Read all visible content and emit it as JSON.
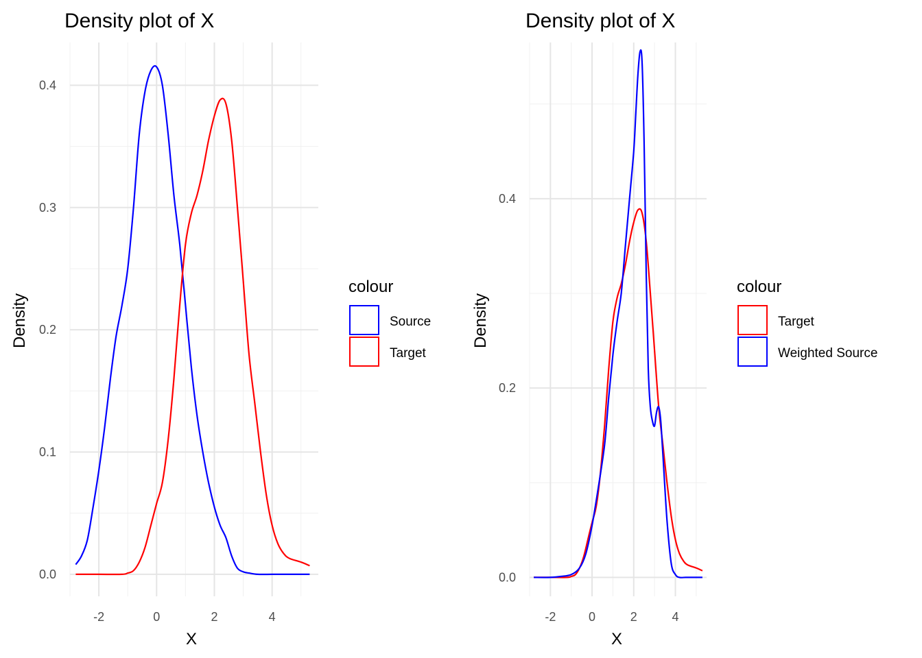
{
  "chart_data": [
    {
      "type": "line",
      "title": "Density plot of X",
      "xlabel": "X",
      "ylabel": "Density",
      "xlim": [
        -3.0,
        5.6
      ],
      "ylim": [
        -0.018,
        0.435
      ],
      "x_ticks": [
        -2,
        0,
        2,
        4
      ],
      "y_ticks": [
        0.0,
        0.1,
        0.2,
        0.3,
        0.4
      ],
      "y_tick_labels": [
        "0.0",
        "0.1",
        "0.2",
        "0.3",
        "0.4"
      ],
      "grid": true,
      "legend": {
        "title": "colour",
        "position": "right",
        "entries": [
          {
            "label": "Source",
            "color": "#0000ff"
          },
          {
            "label": "Target",
            "color": "#ff0000"
          }
        ]
      },
      "series": [
        {
          "name": "Source",
          "color": "#0000ff",
          "x": [
            -2.8,
            -2.6,
            -2.4,
            -2.2,
            -2.0,
            -1.8,
            -1.6,
            -1.4,
            -1.2,
            -1.0,
            -0.8,
            -0.6,
            -0.4,
            -0.2,
            0.0,
            0.2,
            0.4,
            0.6,
            0.8,
            1.0,
            1.2,
            1.4,
            1.6,
            1.8,
            2.0,
            2.2,
            2.4,
            2.6,
            2.8,
            3.0,
            3.2,
            3.5,
            4.0,
            4.5,
            5.0,
            5.3
          ],
          "y": [
            0.008,
            0.015,
            0.028,
            0.055,
            0.085,
            0.12,
            0.16,
            0.195,
            0.22,
            0.25,
            0.3,
            0.36,
            0.395,
            0.412,
            0.415,
            0.4,
            0.36,
            0.31,
            0.27,
            0.22,
            0.17,
            0.13,
            0.1,
            0.075,
            0.055,
            0.04,
            0.03,
            0.015,
            0.005,
            0.002,
            0.001,
            0.0,
            0.0,
            0.0,
            0.0,
            0.0
          ]
        },
        {
          "name": "Target",
          "color": "#ff0000",
          "x": [
            -2.8,
            -2.0,
            -1.2,
            -1.0,
            -0.8,
            -0.6,
            -0.4,
            -0.2,
            0.0,
            0.2,
            0.4,
            0.6,
            0.8,
            1.0,
            1.2,
            1.4,
            1.6,
            1.8,
            2.0,
            2.2,
            2.4,
            2.6,
            2.8,
            3.0,
            3.2,
            3.4,
            3.6,
            3.8,
            4.0,
            4.2,
            4.4,
            4.6,
            5.0,
            5.3
          ],
          "y": [
            0.0,
            0.0,
            0.0,
            0.001,
            0.003,
            0.01,
            0.022,
            0.04,
            0.058,
            0.075,
            0.11,
            0.16,
            0.22,
            0.27,
            0.295,
            0.31,
            0.33,
            0.355,
            0.375,
            0.388,
            0.385,
            0.355,
            0.3,
            0.24,
            0.18,
            0.14,
            0.1,
            0.065,
            0.04,
            0.025,
            0.017,
            0.013,
            0.01,
            0.007
          ]
        }
      ]
    },
    {
      "type": "line",
      "title": "Density plot of X",
      "xlabel": "X",
      "ylabel": "Density",
      "xlim": [
        -3.0,
        5.5
      ],
      "ylim": [
        -0.02,
        0.565
      ],
      "x_ticks": [
        -2,
        0,
        2,
        4
      ],
      "y_ticks": [
        0.0,
        0.2,
        0.4
      ],
      "y_tick_labels": [
        "0.0",
        "0.2",
        "0.4"
      ],
      "grid": true,
      "legend": {
        "title": "colour",
        "position": "right",
        "entries": [
          {
            "label": "Target",
            "color": "#ff0000"
          },
          {
            "label": "Weighted Source",
            "color": "#0000ff"
          }
        ]
      },
      "series": [
        {
          "name": "Target",
          "color": "#ff0000",
          "x": [
            -2.8,
            -2.0,
            -1.2,
            -1.0,
            -0.8,
            -0.6,
            -0.4,
            -0.2,
            0.0,
            0.2,
            0.4,
            0.6,
            0.8,
            1.0,
            1.2,
            1.4,
            1.6,
            1.8,
            2.0,
            2.2,
            2.4,
            2.6,
            2.8,
            3.0,
            3.2,
            3.4,
            3.6,
            3.8,
            4.0,
            4.2,
            4.4,
            4.6,
            5.0,
            5.3
          ],
          "y": [
            0.0,
            0.0,
            0.0,
            0.001,
            0.003,
            0.01,
            0.022,
            0.04,
            0.058,
            0.075,
            0.11,
            0.16,
            0.22,
            0.27,
            0.295,
            0.31,
            0.33,
            0.355,
            0.375,
            0.388,
            0.385,
            0.355,
            0.3,
            0.24,
            0.18,
            0.14,
            0.1,
            0.065,
            0.04,
            0.025,
            0.017,
            0.013,
            0.01,
            0.007
          ]
        },
        {
          "name": "Weighted Source",
          "color": "#0000ff",
          "x": [
            -2.8,
            -2.0,
            -1.5,
            -1.0,
            -0.6,
            -0.3,
            0.0,
            0.3,
            0.6,
            0.8,
            1.0,
            1.2,
            1.4,
            1.6,
            1.8,
            2.0,
            2.1,
            2.2,
            2.3,
            2.4,
            2.5,
            2.6,
            2.7,
            2.8,
            2.9,
            3.0,
            3.1,
            3.2,
            3.3,
            3.4,
            3.6,
            3.8,
            4.0,
            4.2,
            4.5,
            5.0,
            5.3
          ],
          "y": [
            0.0,
            0.0,
            0.001,
            0.003,
            0.01,
            0.025,
            0.055,
            0.095,
            0.14,
            0.19,
            0.235,
            0.27,
            0.3,
            0.35,
            0.4,
            0.45,
            0.49,
            0.53,
            0.555,
            0.545,
            0.46,
            0.32,
            0.22,
            0.18,
            0.165,
            0.16,
            0.175,
            0.18,
            0.165,
            0.13,
            0.06,
            0.015,
            0.003,
            0.0,
            0.0,
            0.0,
            0.0
          ]
        }
      ]
    }
  ]
}
